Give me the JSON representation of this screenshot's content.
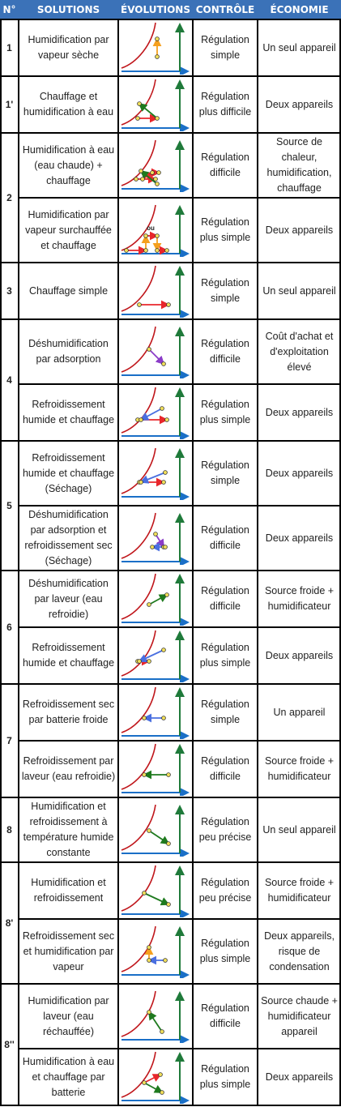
{
  "headers": {
    "num": "N°",
    "solutions": "SOLUTIONS",
    "evolutions": "ÉVOLUTIONS",
    "controle": "CONTRÔLE",
    "economie": "ÉCONOMIE"
  },
  "colors": {
    "header_bg": "#3b72b8",
    "axis": "#1a6fc7",
    "vertical_axis": "#1f7a3a",
    "curve": "#c0161b",
    "point": "#f2e05a",
    "arrow_red": "#e8262b",
    "arrow_green": "#1e7a1e",
    "arrow_blue": "#4a6fe0",
    "arrow_orange": "#f5a01e",
    "arrow_purple": "#8b3cc8"
  },
  "groups": [
    "1",
    "1'",
    "2",
    "3",
    "4",
    "5",
    "6",
    "7",
    "8",
    "8'",
    "8''"
  ],
  "rows": [
    {
      "solution": "Humidification par vapeur sèche",
      "controle": "Régulation simple",
      "economie": "Un seul appareil"
    },
    {
      "solution": "Chauffage et humidification à eau",
      "controle": "Régulation plus difficile",
      "economie": "Deux appareils"
    },
    {
      "solution": "Humidification à eau (eau chaude) + chauffage",
      "controle": "Régulation difficile",
      "economie": "Source de chaleur, humidification, chauffage"
    },
    {
      "solution": "Humidification par vapeur surchauffée et chauffage",
      "controle": "Régulation plus simple",
      "economie": "Deux appareils",
      "note": "ou"
    },
    {
      "solution": "Chauffage simple",
      "controle": "Régulation simple",
      "economie": "Un seul appareil"
    },
    {
      "solution": "Déshumidification par adsorption",
      "controle": "Régulation difficile",
      "economie": "Coût d'achat et d'exploitation élevé"
    },
    {
      "solution": "Refroidissement humide et chauffage",
      "controle": "Régulation plus simple",
      "economie": "Deux appareils"
    },
    {
      "solution": "Refroidissement humide et chauffage (Séchage)",
      "controle": "Régulation simple",
      "economie": "Deux appareils"
    },
    {
      "solution": "Déshumidification par adsorption et refroidissement sec (Séchage)",
      "controle": "Régulation difficile",
      "economie": "Deux appareils"
    },
    {
      "solution": "Déshumidification par laveur (eau refroidie)",
      "controle": "Régulation difficile",
      "economie": "Source froide + humidificateur"
    },
    {
      "solution": "Refroidissement humide et chauffage",
      "controle": "Régulation plus simple",
      "economie": "Deux appareils"
    },
    {
      "solution": "Refroidissement sec par batterie froide",
      "controle": "Régulation simple",
      "economie": "Un appareil"
    },
    {
      "solution": "Refroidissement par laveur (eau refroidie)",
      "controle": "Régulation difficile",
      "economie": "Source froide + humidificateur"
    },
    {
      "solution": "Humidification et refroidissement à température humide constante",
      "controle": "Régulation peu précise",
      "economie": "Un seul appareil"
    },
    {
      "solution": "Humidification et refroidissement",
      "controle": "Régulation peu précise",
      "economie": "Source froide + humidificateur"
    },
    {
      "solution": "Refroidissement sec et humidification par vapeur",
      "controle": "Régulation plus simple",
      "economie": "Deux appareils, risque de condensation"
    },
    {
      "solution": "Humidification par laveur (eau réchauffée)",
      "controle": "Régulation difficile",
      "economie": "Source chaude + humidificateur appareil"
    },
    {
      "solution": "Humidification à eau et chauffage par batterie",
      "controle": "Régulation plus simple",
      "economie": "Deux appareils"
    }
  ]
}
